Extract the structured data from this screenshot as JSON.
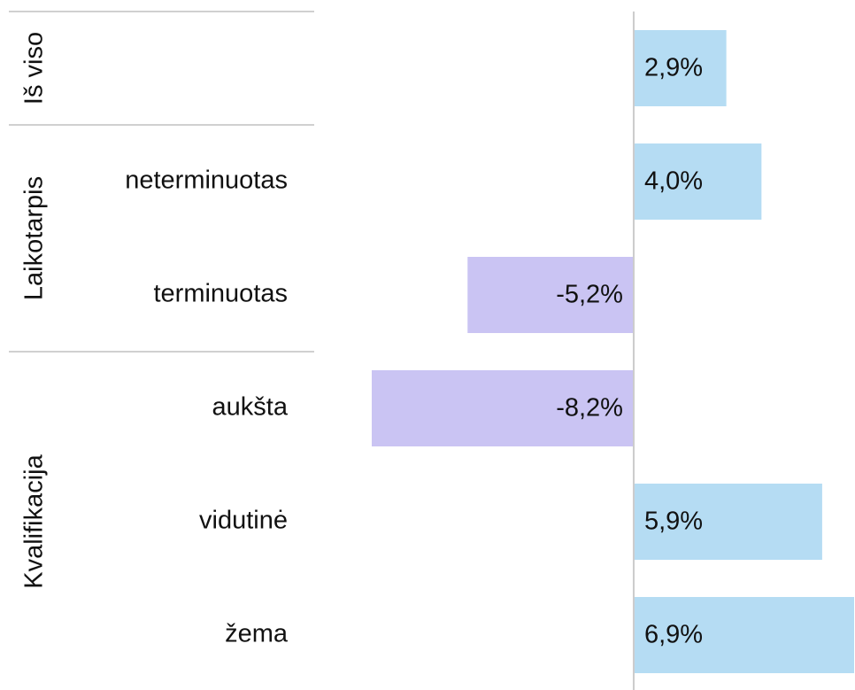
{
  "chart_data": {
    "type": "bar",
    "orientation": "horizontal",
    "colors": {
      "positive": "#b5dcf3",
      "negative": "#cac4f3"
    },
    "groups": [
      {
        "name": "Iš viso",
        "categories": [
          null
        ],
        "values": [
          2.9
        ],
        "value_labels": [
          "2,9%"
        ]
      },
      {
        "name": "Laikotarpis",
        "categories": [
          "neterminuotas",
          "terminuotas"
        ],
        "values": [
          4.0,
          -5.2
        ],
        "value_labels": [
          "4,0%",
          "-5,2%"
        ]
      },
      {
        "name": "Kvalifikacija",
        "categories": [
          "aukšta",
          "vidutinė",
          "žema"
        ],
        "values": [
          -8.2,
          5.9,
          6.9
        ],
        "value_labels": [
          "-8,2%",
          "5,9%",
          "6,9%"
        ]
      }
    ]
  }
}
